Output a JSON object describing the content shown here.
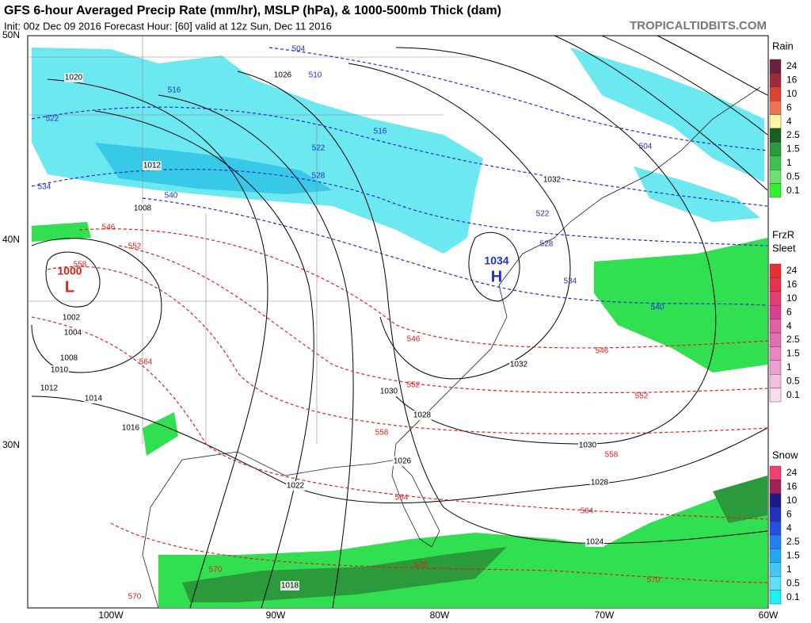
{
  "header": {
    "title": "GFS 6-hour Averaged Precip Rate (mm/hr), MSLP (hPa), & 1000-500mb Thick (dam)",
    "init_line": "Init: 00z Dec 09 2016   Forecast Hour: [60]   valid at 12z Sun, Dec 11 2016",
    "site": "TROPICALTIDBITS.COM"
  },
  "axes": {
    "lat_labels": [
      "50N",
      "40N",
      "30N"
    ],
    "lon_labels": [
      "100W",
      "90W",
      "80W",
      "70W",
      "60W"
    ]
  },
  "legend": {
    "rain": {
      "title": "Rain",
      "levels": [
        24,
        16,
        10,
        6,
        4,
        2.5,
        1.5,
        1,
        0.5,
        0.1
      ]
    },
    "frzr": {
      "title": "FrzR",
      "subtitle": "Sleet",
      "levels": [
        24,
        16,
        10,
        6,
        4,
        2.5,
        1.5,
        1,
        0.5,
        0.1
      ]
    },
    "snow": {
      "title": "Snow",
      "levels": [
        24,
        16,
        10,
        6,
        4,
        2.5,
        1.5,
        1,
        0.5,
        0.1
      ]
    }
  },
  "centers": [
    {
      "value": "1000",
      "label": "L"
    },
    {
      "value": "1034",
      "label": "H"
    }
  ],
  "isobar_labels": [
    1020,
    1026,
    1012,
    1008,
    1002,
    1004,
    1008,
    1010,
    1012,
    1014,
    1016,
    1022,
    1026,
    1028,
    1030,
    1032,
    1032,
    1030,
    1028,
    1024,
    1018
  ],
  "thickness_labels": [
    504,
    510,
    516,
    516,
    522,
    522,
    522,
    504,
    528,
    528,
    534,
    534,
    540,
    540,
    546,
    546,
    546,
    552,
    552,
    552,
    558,
    558,
    558,
    564,
    564,
    564,
    570,
    570,
    570,
    570
  ]
}
